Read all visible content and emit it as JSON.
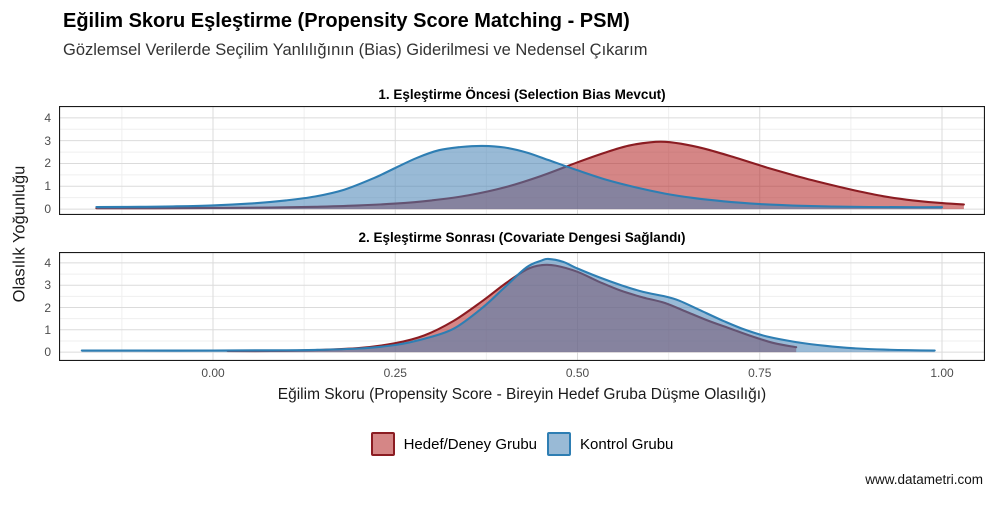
{
  "header": {
    "title": "Eğilim Skoru Eşleştirme (Propensity Score Matching - PSM)",
    "subtitle": "Gözlemsel Verilerde Seçilim Yanlılığının (Bias) Giderilmesi ve Nedensel Çıkarım"
  },
  "watermark": "www.datametri.com",
  "colors": {
    "treatment_line": "#8B1C22",
    "treatment_fill": "rgba(178,34,34,0.55)",
    "control_line": "#2E7EB3",
    "control_fill": "rgba(70,130,180,0.55)",
    "grid_major": "#DBDBDB",
    "grid_minor": "#EFEFEF",
    "panel_border": "#1a1a1a",
    "tick_text": "#4d4d4d"
  },
  "legend": {
    "items": [
      {
        "key": "treatment",
        "label": "Hedef/Deney Grubu"
      },
      {
        "key": "control",
        "label": "Kontrol Grubu"
      }
    ]
  },
  "chart_data": {
    "type": "area",
    "subtype": "density",
    "xlabel": "Eğilim Skoru (Propensity Score - Bireyin Hedef Gruba Düşme Olasılığı)",
    "ylabel": "Olasılık Yoğunluğu",
    "xlim": [
      -0.211,
      1.059
    ],
    "x_ticks": [
      0,
      0.25,
      0.5,
      0.75,
      1.0
    ],
    "x_tick_labels": [
      "0.00",
      "0.25",
      "0.50",
      "0.75",
      "1.00"
    ],
    "x_minor": [
      -0.125,
      0.125,
      0.375,
      0.625,
      0.875
    ],
    "y_ticks": [
      0,
      1,
      2,
      3,
      4
    ],
    "y_minor": [
      0.5,
      1.5,
      2.5,
      3.5
    ],
    "grid": true,
    "legend_position": "bottom",
    "panels": [
      {
        "title": "1. Eşleştirme Öncesi (Selection Bias Mevcut)",
        "ylim": [
          -0.26,
          4.52
        ],
        "series": [
          {
            "name": "Hedef/Deney Grubu",
            "key": "treatment",
            "peak_x": 0.61,
            "peak_y": 2.95,
            "points": [
              [
                -0.16,
                0.04
              ],
              [
                -0.08,
                0.04
              ],
              [
                0.0,
                0.05
              ],
              [
                0.08,
                0.07
              ],
              [
                0.14,
                0.1
              ],
              [
                0.2,
                0.16
              ],
              [
                0.25,
                0.24
              ],
              [
                0.3,
                0.38
              ],
              [
                0.35,
                0.6
              ],
              [
                0.4,
                0.95
              ],
              [
                0.45,
                1.45
              ],
              [
                0.5,
                2.05
              ],
              [
                0.54,
                2.5
              ],
              [
                0.57,
                2.78
              ],
              [
                0.6,
                2.93
              ],
              [
                0.62,
                2.95
              ],
              [
                0.65,
                2.82
              ],
              [
                0.68,
                2.6
              ],
              [
                0.72,
                2.22
              ],
              [
                0.76,
                1.82
              ],
              [
                0.8,
                1.45
              ],
              [
                0.84,
                1.12
              ],
              [
                0.88,
                0.82
              ],
              [
                0.92,
                0.56
              ],
              [
                0.96,
                0.38
              ],
              [
                1.0,
                0.26
              ],
              [
                1.03,
                0.2
              ]
            ]
          },
          {
            "name": "Kontrol Grubu",
            "key": "control",
            "peak_x": 0.35,
            "peak_y": 2.77,
            "points": [
              [
                -0.16,
                0.09
              ],
              [
                -0.1,
                0.1
              ],
              [
                -0.05,
                0.12
              ],
              [
                0.0,
                0.16
              ],
              [
                0.05,
                0.24
              ],
              [
                0.1,
                0.38
              ],
              [
                0.14,
                0.55
              ],
              [
                0.18,
                0.85
              ],
              [
                0.22,
                1.35
              ],
              [
                0.25,
                1.8
              ],
              [
                0.28,
                2.25
              ],
              [
                0.31,
                2.58
              ],
              [
                0.34,
                2.72
              ],
              [
                0.37,
                2.77
              ],
              [
                0.4,
                2.7
              ],
              [
                0.43,
                2.48
              ],
              [
                0.46,
                2.15
              ],
              [
                0.5,
                1.7
              ],
              [
                0.54,
                1.28
              ],
              [
                0.58,
                0.95
              ],
              [
                0.62,
                0.68
              ],
              [
                0.66,
                0.48
              ],
              [
                0.7,
                0.34
              ],
              [
                0.75,
                0.22
              ],
              [
                0.8,
                0.15
              ],
              [
                0.85,
                0.11
              ],
              [
                0.9,
                0.09
              ],
              [
                0.95,
                0.08
              ],
              [
                1.0,
                0.08
              ]
            ]
          }
        ]
      },
      {
        "title": "2. Eşleştirme Sonrası (Covariate Dengesi Sağlandı)",
        "ylim": [
          -0.4,
          4.49
        ],
        "series": [
          {
            "name": "Hedef/Deney Grubu",
            "key": "treatment",
            "peak_x": 0.45,
            "peak_y": 3.9,
            "points": [
              [
                0.02,
                0.05
              ],
              [
                0.08,
                0.05
              ],
              [
                0.14,
                0.09
              ],
              [
                0.2,
                0.18
              ],
              [
                0.25,
                0.4
              ],
              [
                0.29,
                0.75
              ],
              [
                0.33,
                1.4
              ],
              [
                0.37,
                2.3
              ],
              [
                0.4,
                3.05
              ],
              [
                0.43,
                3.7
              ],
              [
                0.45,
                3.9
              ],
              [
                0.47,
                3.88
              ],
              [
                0.5,
                3.6
              ],
              [
                0.53,
                3.15
              ],
              [
                0.56,
                2.75
              ],
              [
                0.59,
                2.45
              ],
              [
                0.62,
                2.2
              ],
              [
                0.65,
                1.8
              ],
              [
                0.68,
                1.4
              ],
              [
                0.71,
                1.05
              ],
              [
                0.74,
                0.7
              ],
              [
                0.77,
                0.4
              ],
              [
                0.8,
                0.22
              ]
            ]
          },
          {
            "name": "Kontrol Grubu",
            "key": "control",
            "peak_x": 0.46,
            "peak_y": 4.18,
            "points": [
              [
                -0.18,
                0.07
              ],
              [
                -0.1,
                0.07
              ],
              [
                0.0,
                0.07
              ],
              [
                0.08,
                0.08
              ],
              [
                0.14,
                0.1
              ],
              [
                0.2,
                0.16
              ],
              [
                0.25,
                0.32
              ],
              [
                0.29,
                0.6
              ],
              [
                0.33,
                1.05
              ],
              [
                0.37,
                2.0
              ],
              [
                0.4,
                2.9
              ],
              [
                0.43,
                3.8
              ],
              [
                0.45,
                4.1
              ],
              [
                0.46,
                4.18
              ],
              [
                0.48,
                4.05
              ],
              [
                0.5,
                3.75
              ],
              [
                0.53,
                3.35
              ],
              [
                0.56,
                3.0
              ],
              [
                0.59,
                2.7
              ],
              [
                0.62,
                2.5
              ],
              [
                0.64,
                2.3
              ],
              [
                0.67,
                1.85
              ],
              [
                0.7,
                1.4
              ],
              [
                0.73,
                1.0
              ],
              [
                0.76,
                0.7
              ],
              [
                0.8,
                0.45
              ],
              [
                0.84,
                0.28
              ],
              [
                0.88,
                0.17
              ],
              [
                0.92,
                0.11
              ],
              [
                0.99,
                0.07
              ]
            ]
          }
        ]
      }
    ]
  }
}
